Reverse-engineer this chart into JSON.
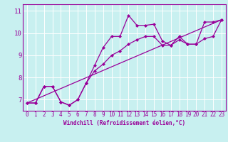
{
  "xlabel": "Windchill (Refroidissement éolien,°C)",
  "bg_color": "#c8f0f0",
  "line_color": "#990099",
  "grid_color": "#ffffff",
  "xlim": [
    -0.5,
    23.5
  ],
  "ylim": [
    6.5,
    11.3
  ],
  "xticks": [
    0,
    1,
    2,
    3,
    4,
    5,
    6,
    7,
    8,
    9,
    10,
    11,
    12,
    13,
    14,
    15,
    16,
    17,
    18,
    19,
    20,
    21,
    22,
    23
  ],
  "yticks": [
    7,
    8,
    9,
    10,
    11
  ],
  "curve1_x": [
    0,
    1,
    2,
    3,
    4,
    5,
    6,
    7,
    8,
    9,
    10,
    11,
    12,
    13,
    14,
    15,
    16,
    17,
    18,
    19,
    20,
    21,
    22,
    23
  ],
  "curve1_y": [
    6.85,
    6.85,
    7.6,
    7.6,
    6.9,
    6.75,
    7.0,
    7.75,
    8.55,
    9.35,
    9.85,
    9.85,
    10.8,
    10.35,
    10.35,
    10.4,
    9.65,
    9.45,
    9.85,
    9.5,
    9.5,
    10.5,
    10.5,
    10.6
  ],
  "curve2_x": [
    0,
    1,
    2,
    3,
    4,
    5,
    6,
    7,
    8,
    9,
    10,
    11,
    12,
    13,
    14,
    15,
    16,
    17,
    18,
    19,
    20,
    21,
    22,
    23
  ],
  "curve2_y": [
    6.85,
    6.85,
    7.6,
    7.6,
    6.9,
    6.75,
    7.0,
    7.75,
    8.3,
    8.6,
    9.0,
    9.2,
    9.5,
    9.7,
    9.85,
    9.85,
    9.45,
    9.45,
    9.7,
    9.5,
    9.5,
    9.75,
    9.85,
    10.6
  ],
  "curve3_x": [
    0,
    23
  ],
  "curve3_y": [
    6.85,
    10.6
  ],
  "marker_size": 2.5,
  "linewidth": 0.9,
  "tick_fontsize": 5.5,
  "label_fontsize": 5.5
}
